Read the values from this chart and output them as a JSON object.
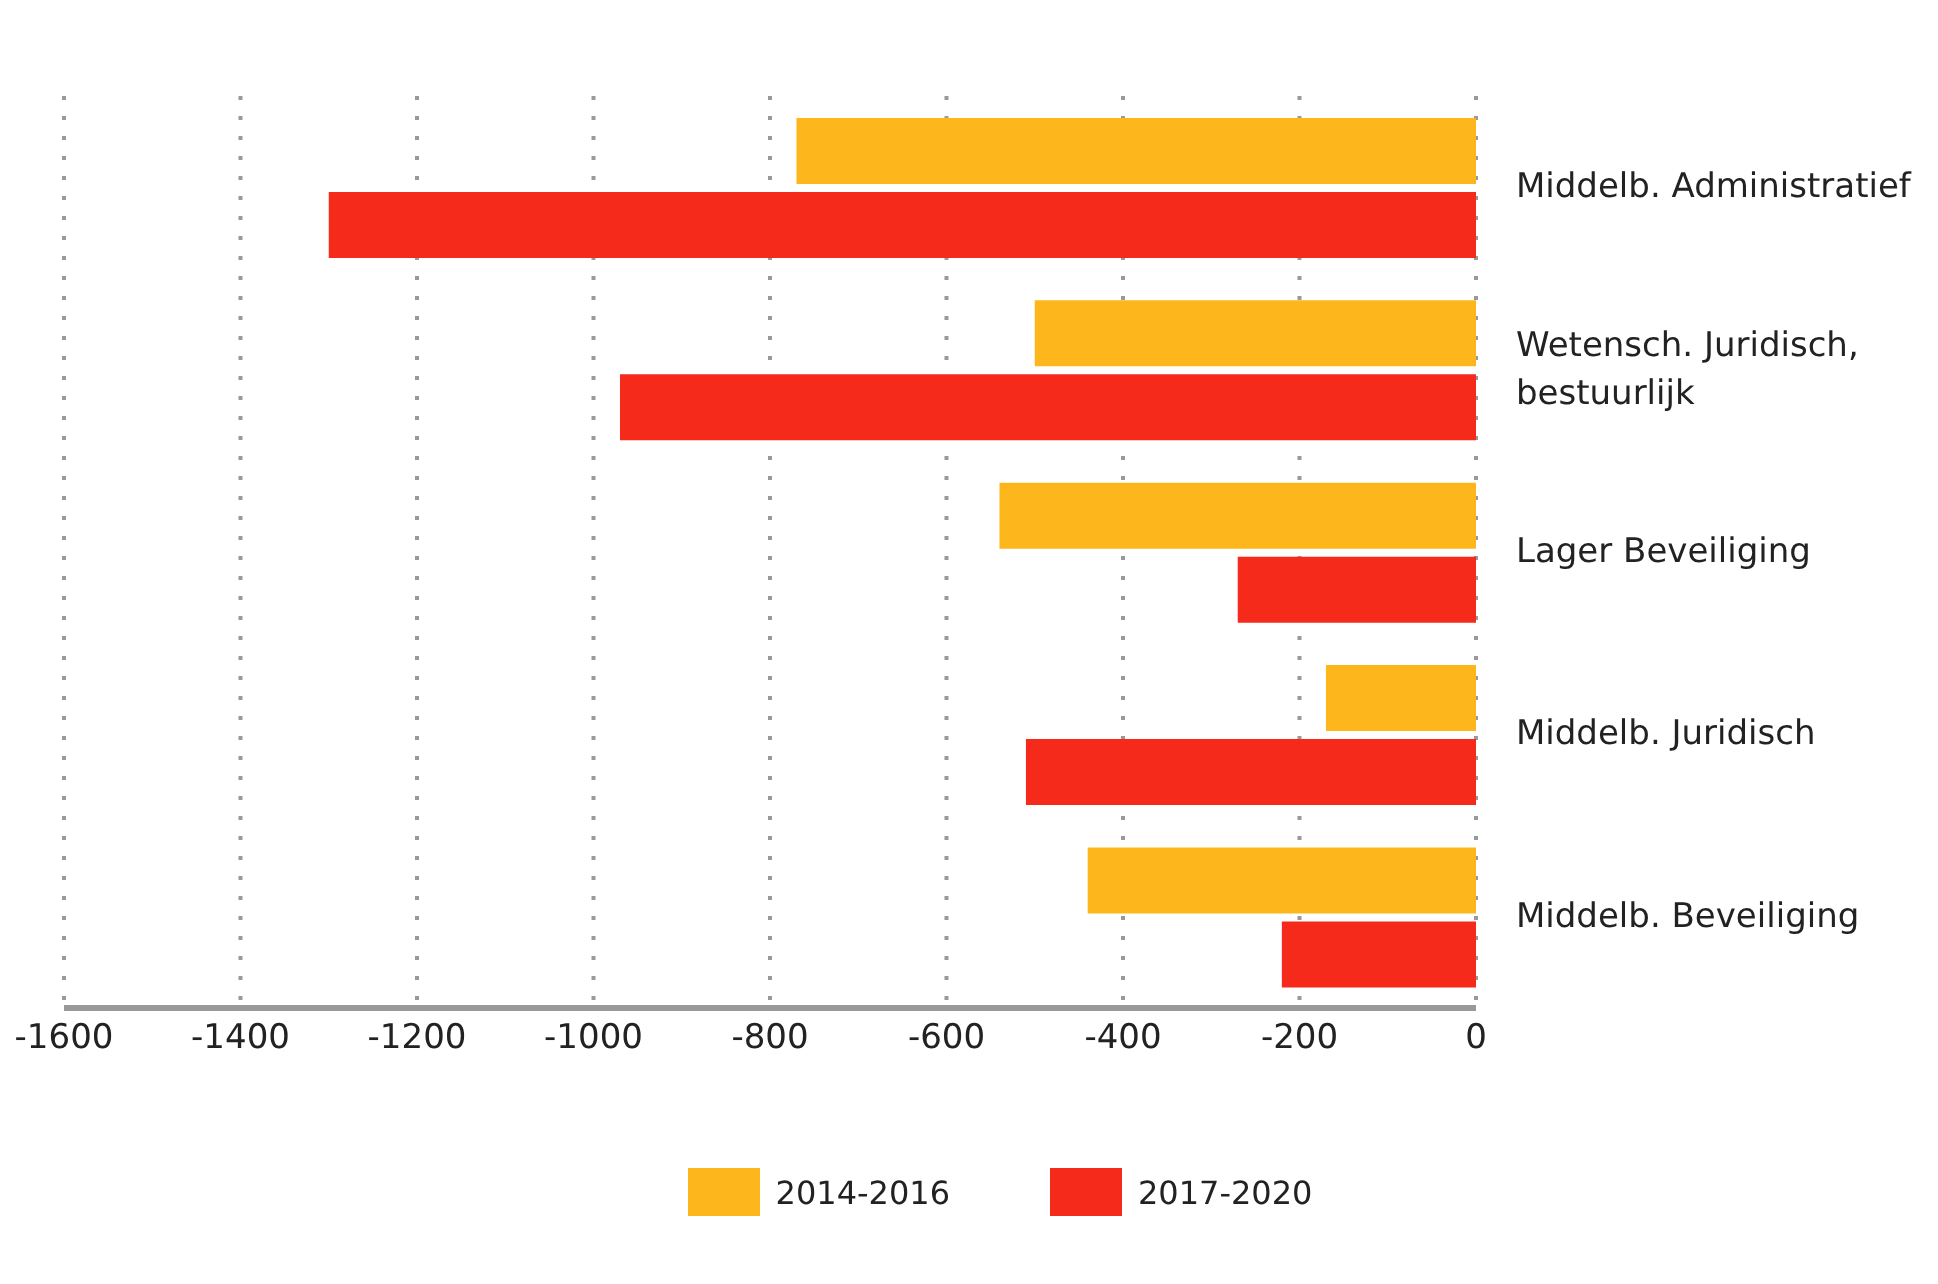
{
  "chart_data": {
    "type": "bar",
    "orientation": "horizontal",
    "categories": [
      "Middelb. Administratief",
      "Wetensch. Juridisch, bestuurlijk",
      "Lager Beveiliging",
      "Middelb. Juridisch",
      "Middelb. Beveiliging"
    ],
    "series": [
      {
        "name": "2014-2016",
        "color": "#fdb71c",
        "values": [
          -770,
          -500,
          -540,
          -170,
          -440
        ]
      },
      {
        "name": "2017-2020",
        "color": "#f52a1b",
        "values": [
          -1300,
          -970,
          -270,
          -510,
          -220
        ]
      }
    ],
    "xlim": [
      -1600,
      0
    ],
    "xticks": [
      -1600,
      -1400,
      -1200,
      -1000,
      -800,
      -600,
      -400,
      -200,
      0
    ],
    "grid": "x",
    "legend": "bottom"
  }
}
